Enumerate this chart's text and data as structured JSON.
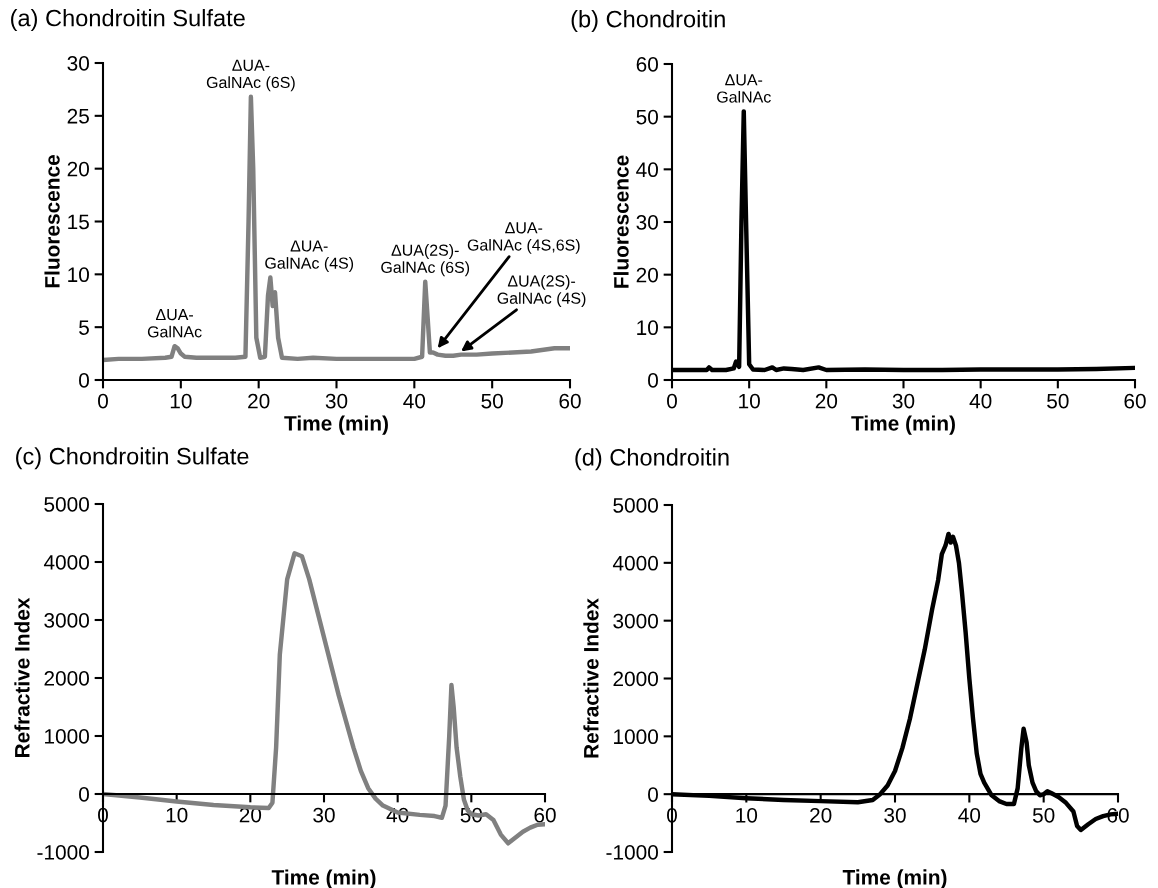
{
  "chart_data": [
    {
      "type": "line",
      "title": "(a) Chondroitin Sulfate",
      "xlabel": "Time (min)",
      "ylabel": "Fluorescence",
      "xlim": [
        0,
        60
      ],
      "ylim": [
        0,
        30
      ],
      "xticks": [
        0,
        10,
        20,
        30,
        40,
        50,
        60
      ],
      "yticks": [
        0,
        5,
        10,
        15,
        20,
        25,
        30
      ],
      "series": [
        {
          "color": "#808080",
          "x": [
            0,
            2,
            5,
            8,
            8.8,
            9.2,
            9.6,
            10,
            10.5,
            12,
            15,
            17,
            18.3,
            18.7,
            19,
            19.3,
            19.7,
            20.2,
            20.8,
            21.2,
            21.5,
            21.8,
            22.1,
            22.5,
            23,
            25,
            27,
            30,
            35,
            40,
            41,
            41.4,
            41.7,
            42,
            42.4,
            43,
            44,
            45,
            46,
            48,
            50,
            55,
            58,
            60
          ],
          "values": [
            1.9,
            2.0,
            2.0,
            2.1,
            2.2,
            3.2,
            3.0,
            2.5,
            2.2,
            2.1,
            2.1,
            2.1,
            2.2,
            15,
            26.8,
            20,
            4,
            2.1,
            2.2,
            8,
            9.7,
            7,
            8.3,
            4,
            2.1,
            2.0,
            2.1,
            2.0,
            2.0,
            2.0,
            2.2,
            9.3,
            6,
            2.6,
            2.6,
            2.4,
            2.3,
            2.3,
            2.4,
            2.4,
            2.5,
            2.7,
            3.0,
            3.0
          ]
        }
      ],
      "annotations": [
        {
          "text": "ΔUA-\nGalNAc",
          "x": 9.2,
          "y": 3.2
        },
        {
          "text": "ΔUA-\nGalNAc (6S)",
          "x": 19,
          "y": 26.8
        },
        {
          "text": "ΔUA-\nGalNAc (4S)",
          "x": 21.5,
          "y": 9.7
        },
        {
          "text": "ΔUA(2S)-\nGalNAc (6S)",
          "x": 41.4,
          "y": 9.3
        },
        {
          "text": "ΔUA-\nGalNAc (4S,6S)",
          "x": 43,
          "y": 3.0
        },
        {
          "text": "ΔUA(2S)-\nGalNAc (4S)",
          "x": 46,
          "y": 2.7
        }
      ]
    },
    {
      "type": "line",
      "title": "(b) Chondroitin",
      "xlabel": "Time (min)",
      "ylabel": "Fluorescence",
      "xlim": [
        0,
        60
      ],
      "ylim": [
        0,
        60
      ],
      "xticks": [
        0,
        10,
        20,
        30,
        40,
        50,
        60
      ],
      "yticks": [
        0,
        10,
        20,
        30,
        40,
        50,
        60
      ],
      "series": [
        {
          "color": "#000000",
          "x": [
            0,
            2,
            4.5,
            4.8,
            5.2,
            7,
            8,
            8.3,
            8.7,
            9.0,
            9.3,
            9.6,
            10,
            10.5,
            12,
            13,
            13.5,
            14.5,
            15.5,
            17,
            19,
            20,
            25,
            30,
            35,
            40,
            45,
            50,
            55,
            60
          ],
          "values": [
            1.9,
            1.9,
            1.9,
            2.4,
            1.9,
            1.9,
            2.2,
            3.5,
            2.5,
            30,
            51,
            30,
            3,
            2.0,
            1.9,
            2.4,
            1.9,
            2.2,
            2.1,
            1.9,
            2.4,
            1.9,
            2.0,
            1.9,
            1.9,
            2.0,
            2.0,
            2.0,
            2.1,
            2.3
          ]
        }
      ],
      "annotations": [
        {
          "text": "ΔUA-\nGalNAc",
          "x": 9.3,
          "y": 51
        }
      ]
    },
    {
      "type": "line",
      "title": "(c) Chondroitin Sulfate",
      "xlabel": "Time (min)",
      "ylabel": "Refractive Index",
      "xlim": [
        0,
        60
      ],
      "ylim": [
        -1000,
        5000
      ],
      "xticks": [
        0,
        10,
        20,
        30,
        40,
        50,
        60
      ],
      "yticks": [
        -1000,
        0,
        1000,
        2000,
        3000,
        4000,
        5000
      ],
      "series": [
        {
          "color": "#808080",
          "x": [
            0,
            5,
            10,
            15,
            20,
            22.5,
            23,
            23.5,
            24,
            25,
            26,
            27,
            28,
            30,
            32,
            34,
            35,
            36,
            37,
            38,
            40,
            43,
            45,
            46,
            46.5,
            47,
            47.3,
            47.6,
            48,
            48.5,
            49,
            49.5,
            50,
            51,
            52,
            53,
            54,
            55,
            56,
            57,
            58,
            59,
            60
          ],
          "values": [
            0,
            -60,
            -130,
            -190,
            -230,
            -240,
            -150,
            800,
            2400,
            3700,
            4150,
            4100,
            3700,
            2700,
            1700,
            800,
            400,
            100,
            -80,
            -200,
            -320,
            -360,
            -380,
            -410,
            -200,
            1000,
            1880,
            1500,
            800,
            300,
            -100,
            -280,
            -350,
            -370,
            -350,
            -450,
            -700,
            -850,
            -750,
            -650,
            -580,
            -530,
            -520
          ]
        }
      ]
    },
    {
      "type": "line",
      "title": "(d) Chondroitin",
      "xlabel": "Time (min)",
      "ylabel": "Refractive Index",
      "xlim": [
        0,
        60
      ],
      "ylim": [
        -1000,
        5000
      ],
      "xticks": [
        0,
        10,
        20,
        30,
        40,
        50,
        60
      ],
      "yticks": [
        -1000,
        0,
        1000,
        2000,
        3000,
        4000,
        5000
      ],
      "series": [
        {
          "color": "#000000",
          "x": [
            0,
            5,
            10,
            15,
            20,
            25,
            27,
            28,
            29,
            30,
            31,
            32,
            33,
            34,
            35,
            35.8,
            36.3,
            36.8,
            37.2,
            37.5,
            37.8,
            38.2,
            38.6,
            39,
            39.5,
            40,
            40.5,
            41,
            41.5,
            42,
            43,
            44,
            45,
            46,
            46.5,
            47,
            47.3,
            47.7,
            48,
            48.5,
            49,
            49.5,
            50,
            50.5,
            51,
            52,
            53,
            54,
            54.5,
            55,
            56,
            57,
            58,
            59,
            60
          ],
          "values": [
            0,
            -30,
            -70,
            -100,
            -120,
            -140,
            -100,
            0,
            150,
            400,
            800,
            1300,
            1900,
            2500,
            3200,
            3700,
            4150,
            4300,
            4500,
            4350,
            4450,
            4300,
            4000,
            3500,
            2800,
            2000,
            1300,
            700,
            350,
            200,
            -20,
            -120,
            -170,
            -170,
            100,
            800,
            1130,
            900,
            500,
            200,
            50,
            -20,
            0,
            50,
            20,
            -50,
            -150,
            -300,
            -550,
            -620,
            -520,
            -430,
            -380,
            -350,
            -340
          ]
        }
      ]
    }
  ]
}
